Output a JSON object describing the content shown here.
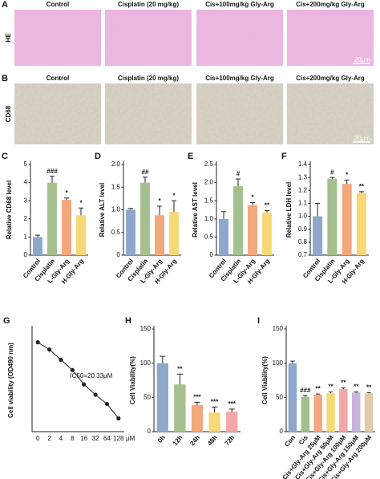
{
  "panel_a": {
    "label": "A",
    "row_label": "HE",
    "columns": [
      "Control",
      "Cisplatin (20 mg/kg)",
      "Cis+100mg/kg Gly-Arg",
      "Cis+200mg/kg Gly-Arg"
    ],
    "scale": "20μm"
  },
  "panel_b": {
    "label": "B",
    "row_label": "CD68",
    "columns": [
      "Control",
      "Cisplatin (20 mg/kg)",
      "Cis+100mg/kg Gly-Arg",
      "Cis+200mg/kg Gly-Arg"
    ],
    "scale": "20μm"
  },
  "chart_data": [
    {
      "type": "bar",
      "panel": "C",
      "ylabel": "Relative CD68 level",
      "categories": [
        "Control",
        "Cisplatin",
        "L-Gly-Arg",
        "H-Gly-Arg"
      ],
      "values": [
        1.0,
        4.0,
        3.05,
        2.2
      ],
      "errors": [
        0.1,
        0.35,
        0.1,
        0.4
      ],
      "annotations": [
        null,
        "###",
        "*",
        "*"
      ],
      "colors": [
        "#8ea8cc",
        "#a3c08e",
        "#f2a87c",
        "#f6d876"
      ],
      "ylim": [
        0,
        5
      ],
      "yticks": [
        0,
        1,
        2,
        3,
        4,
        5
      ]
    },
    {
      "type": "bar",
      "panel": "D",
      "ylabel": "Relative ALT level",
      "categories": [
        "Control",
        "Cisplatin",
        "L-Gly-Arg",
        "H-Gly-Arg"
      ],
      "values": [
        1.0,
        1.6,
        0.88,
        0.95
      ],
      "errors": [
        0.03,
        0.12,
        0.2,
        0.25
      ],
      "annotations": [
        null,
        "##",
        "*",
        "*"
      ],
      "colors": [
        "#8ea8cc",
        "#a3c08e",
        "#f2a87c",
        "#f6d876"
      ],
      "ylim": [
        0,
        2
      ],
      "yticks": [
        0,
        0.5,
        {
          "value": 1,
          "label": "1.0"
        },
        1.5,
        {
          "value": 2,
          "label": "2.0"
        }
      ]
    },
    {
      "type": "bar",
      "panel": "E",
      "ylabel": "Relative AST level",
      "categories": [
        "Control",
        "Cisplatin",
        "L-Gly-Arg",
        "H-Gly-Arg"
      ],
      "values": [
        1.0,
        1.9,
        1.38,
        1.18
      ],
      "errors": [
        0.2,
        0.2,
        0.07,
        0.05
      ],
      "annotations": [
        null,
        "#",
        "*",
        "**"
      ],
      "colors": [
        "#8ea8cc",
        "#a3c08e",
        "#f2a87c",
        "#f6d876"
      ],
      "ylim": [
        0,
        2.5
      ],
      "yticks": [
        0,
        0.5,
        {
          "value": 1,
          "label": "1.0"
        },
        1.5,
        {
          "value": 2,
          "label": "2.0"
        },
        2.5
      ]
    },
    {
      "type": "bar",
      "panel": "F",
      "ylabel": "Relative LDH level",
      "categories": [
        "Control",
        "Cisplatin",
        "L-Gly-Arg",
        "H-Gly-Arg"
      ],
      "values": [
        1.0,
        1.29,
        1.25,
        1.18
      ],
      "errors": [
        0.1,
        0.01,
        0.03,
        0.01
      ],
      "annotations": [
        null,
        "#",
        "*",
        "**"
      ],
      "colors": [
        "#8ea8cc",
        "#a3c08e",
        "#f2a87c",
        "#f6d876"
      ],
      "ylim": [
        0.7,
        1.4
      ],
      "yticks": [
        0.7,
        0.8,
        0.9,
        {
          "value": 1,
          "label": "1.0"
        },
        1.1,
        1.2,
        1.3,
        1.4
      ]
    },
    {
      "type": "line",
      "panel": "G",
      "ylabel": "Cell viability (OD490 nm)",
      "categories": [
        "0",
        "2",
        "4",
        "8",
        "16",
        "32",
        "64",
        "128"
      ],
      "xunit": "μM",
      "values": [
        1.07,
        1.0,
        0.9,
        0.8,
        0.66,
        0.56,
        0.47,
        0.33
      ],
      "annotation": "IC50=20.33μM",
      "color": "#222222",
      "ylim": [
        0.2,
        1.2
      ]
    },
    {
      "type": "bar",
      "panel": "H",
      "ylabel": "Cell Viability(%)",
      "categories": [
        "0h",
        "12h",
        "24h",
        "48h",
        "72h"
      ],
      "values": [
        100,
        69,
        39,
        28,
        29
      ],
      "errors": [
        10,
        15,
        4,
        8,
        4
      ],
      "annotations": [
        null,
        "**",
        "***",
        "***",
        "***"
      ],
      "colors": [
        "#8ea8cc",
        "#a3c08e",
        "#f2a87c",
        "#f6d876",
        "#f4a7a7"
      ],
      "ylim": [
        0,
        150
      ],
      "yticks": [
        0,
        50,
        100,
        150
      ]
    },
    {
      "type": "bar",
      "panel": "I",
      "ylabel": "Cell Viability(%)",
      "categories": [
        "Con",
        "Cis",
        "Cis+Gly-Arg 25μM",
        "Cis+Gly-Arg 50μM",
        "Cis+Gly-Arg 100μM",
        "Cis+Gly-Arg 150μM",
        "Cis+Gly-Arg 200μM"
      ],
      "values": [
        100,
        51,
        54,
        56,
        62,
        57,
        56
      ],
      "errors": [
        3,
        2,
        1,
        2,
        2,
        1,
        1
      ],
      "annotations": [
        null,
        "###",
        "**",
        "**",
        "**",
        "**",
        "**"
      ],
      "colors": [
        "#8ea8cc",
        "#a3c08e",
        "#f2a87c",
        "#f6d876",
        "#f4a7a7",
        "#c9b4da",
        "#e2cba8"
      ],
      "ylim": [
        0,
        150
      ],
      "yticks": [
        0,
        50,
        100,
        150
      ]
    }
  ]
}
